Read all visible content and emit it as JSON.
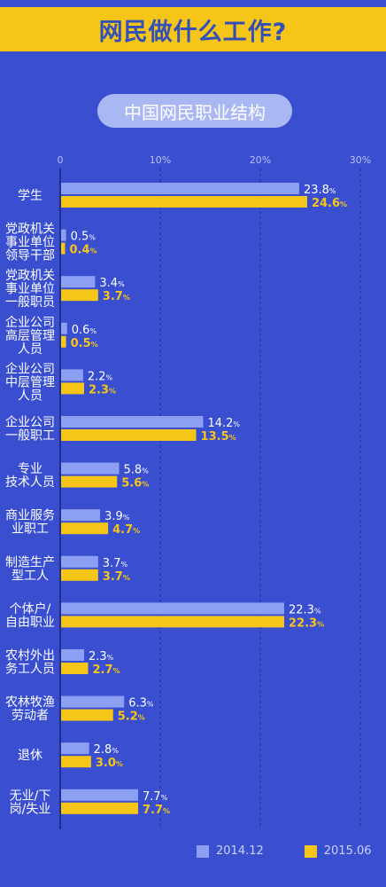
{
  "header": {
    "title": "网民做什么工作?"
  },
  "chart_data": {
    "type": "bar",
    "orientation": "horizontal",
    "title": "中国网民职业结构",
    "xlim": [
      0,
      30
    ],
    "ticks": [
      "0",
      "10%",
      "20%",
      "30%"
    ],
    "value_suffix": "%",
    "categories": [
      [
        "学生"
      ],
      [
        "党政机关",
        "事业单位",
        "领导干部"
      ],
      [
        "党政机关",
        "事业单位",
        "一般职员"
      ],
      [
        "企业公司",
        "高层管理",
        "人员"
      ],
      [
        "企业公司",
        "中层管理",
        "人员"
      ],
      [
        "企业公司",
        "一般职工"
      ],
      [
        "专业",
        "技术人员"
      ],
      [
        "商业服务",
        "业职工"
      ],
      [
        "制造生产",
        "型工人"
      ],
      [
        "个体户/",
        "自由职业"
      ],
      [
        "农村外出",
        "务工人员"
      ],
      [
        "农林牧渔",
        "劳动者"
      ],
      [
        "退休"
      ],
      [
        "无业/下",
        "岗/失业"
      ]
    ],
    "series": [
      {
        "name": "2014.12",
        "color": "#8c9ff2",
        "values": [
          23.8,
          0.5,
          3.4,
          0.6,
          2.2,
          14.2,
          5.8,
          3.9,
          3.7,
          22.3,
          2.3,
          6.3,
          2.8,
          7.7
        ]
      },
      {
        "name": "2015.06",
        "color": "#f5c518",
        "values": [
          24.6,
          0.4,
          3.7,
          0.5,
          2.3,
          13.5,
          5.6,
          4.7,
          3.7,
          22.3,
          2.7,
          5.2,
          3.0,
          7.7
        ]
      }
    ],
    "grid": true,
    "legend": "bottom-right"
  },
  "colors": {
    "background": "#3a4fd0",
    "banner": "#f5c518",
    "axis": "#1f2f8a",
    "tick_text": "#b7c3f5",
    "label_text": "#ffffff"
  }
}
